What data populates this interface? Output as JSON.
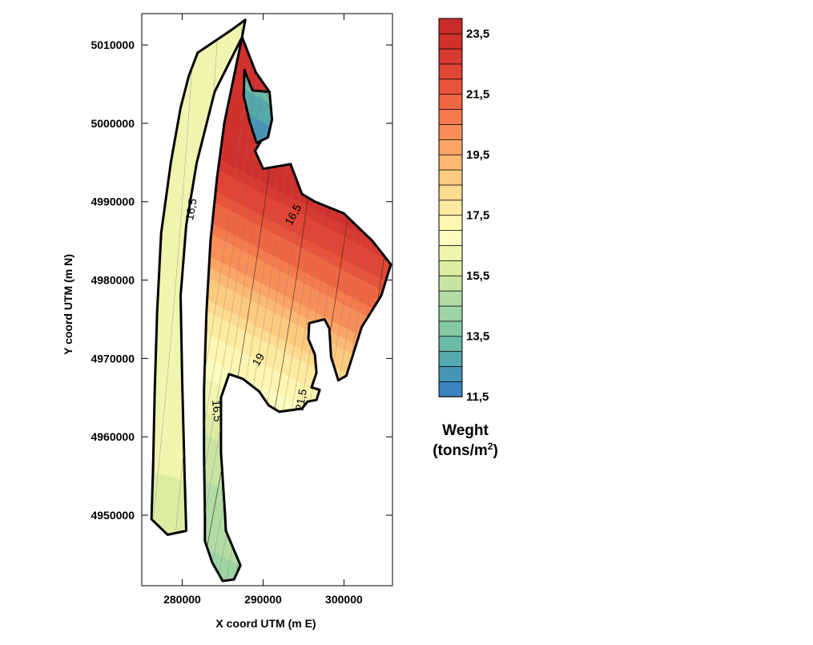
{
  "chart_data": {
    "type": "heatmap",
    "xlabel": "X coord UTM (m E)",
    "ylabel": "Y coord UTM (m N)",
    "xlim": [
      275000,
      306000
    ],
    "ylim": [
      4941000,
      5014000
    ],
    "x_ticks": [
      "280000",
      "290000",
      "300000"
    ],
    "x_tick_values": [
      280000,
      290000,
      300000
    ],
    "y_ticks": [
      "4950000",
      "4960000",
      "4970000",
      "4980000",
      "4990000",
      "5000000",
      "5010000"
    ],
    "y_tick_values": [
      4950000,
      4960000,
      4970000,
      4980000,
      4990000,
      5000000,
      5010000
    ],
    "grid": false,
    "colorbar": {
      "title_line1": "Weght",
      "title_line2": "(tons/m",
      "title_sup": "2",
      "title_end": ")",
      "min": 11.5,
      "max": 24,
      "step": 0.5,
      "tick_labels": [
        "23,5",
        "21,5",
        "19,5",
        "17,5",
        "15,5",
        "13,5",
        "11,5"
      ],
      "tick_values": [
        23.5,
        21.5,
        19.5,
        17.5,
        15.5,
        13.5,
        11.5
      ],
      "colors_low_to_high": [
        "#3B82C0",
        "#4596B6",
        "#54AAAC",
        "#6BBCA6",
        "#85C8A4",
        "#9ED3A4",
        "#B3DBA4",
        "#C8E4A3",
        "#DCEDA2",
        "#EEF5AE",
        "#FCFCBE",
        "#FEF6B2",
        "#FEEAA0",
        "#FDDC8F",
        "#FDCB80",
        "#FDB872",
        "#FCA565",
        "#F98F58",
        "#F57B4D",
        "#EF6643",
        "#E8543B",
        "#E04535",
        "#D83A31",
        "#D0312D",
        "#C92A2A"
      ]
    },
    "contour_labels": [
      {
        "text": "16,5",
        "x": 281200,
        "y": 4989000,
        "rotation": -80
      },
      {
        "text": "16,5",
        "x": 293800,
        "y": 4988300,
        "rotation": -62
      },
      {
        "text": "19",
        "x": 289500,
        "y": 4969800,
        "rotation": -58
      },
      {
        "text": "21,5",
        "x": 294800,
        "y": 4964700,
        "rotation": -80
      },
      {
        "text": "16,5",
        "x": 284200,
        "y": 4963300,
        "rotation": 85
      }
    ],
    "regions": [
      {
        "name": "western-strip",
        "boundary": [
          [
            281900,
            5009000
          ],
          [
            286200,
            5012000
          ],
          [
            287800,
            5013200
          ],
          [
            287400,
            5011000
          ],
          [
            284000,
            5004000
          ],
          [
            281800,
            4995000
          ],
          [
            280500,
            4987000
          ],
          [
            279800,
            4978000
          ],
          [
            280000,
            4967000
          ],
          [
            280300,
            4955000
          ],
          [
            280500,
            4948000
          ],
          [
            278200,
            4947500
          ],
          [
            276200,
            4949500
          ],
          [
            276400,
            4956000
          ],
          [
            276600,
            4966000
          ],
          [
            276900,
            4976000
          ],
          [
            277400,
            4986000
          ],
          [
            278600,
            4995000
          ],
          [
            279800,
            5002000
          ],
          [
            280800,
            5006000
          ]
        ],
        "stops": [
          [
            0,
            15.8
          ],
          [
            0.5,
            16.4
          ],
          [
            1,
            16.2
          ]
        ]
      },
      {
        "name": "central-lobe",
        "boundary": [
          [
            287400,
            5011000
          ],
          [
            289100,
            5006500
          ],
          [
            290800,
            5004000
          ],
          [
            290200,
            4998500
          ],
          [
            289000,
            4996500
          ],
          [
            290000,
            4994200
          ],
          [
            293400,
            4994800
          ],
          [
            294800,
            4991000
          ],
          [
            296400,
            4990000
          ],
          [
            300000,
            4988500
          ],
          [
            303500,
            4985000
          ],
          [
            305800,
            4982000
          ],
          [
            304600,
            4978000
          ],
          [
            302200,
            4974000
          ],
          [
            300300,
            4967800
          ],
          [
            299300,
            4967200
          ],
          [
            298400,
            4970200
          ],
          [
            298200,
            4973800
          ],
          [
            297600,
            4975000
          ],
          [
            295700,
            4974500
          ],
          [
            295600,
            4972500
          ],
          [
            296400,
            4970500
          ],
          [
            296600,
            4968200
          ],
          [
            296000,
            4966300
          ],
          [
            297000,
            4966000
          ],
          [
            296600,
            4964700
          ],
          [
            295500,
            4964500
          ],
          [
            294800,
            4963600
          ],
          [
            292000,
            4963200
          ],
          [
            290700,
            4964000
          ],
          [
            289500,
            4965800
          ],
          [
            287500,
            4967400
          ],
          [
            285800,
            4968000
          ],
          [
            284800,
            4965000
          ],
          [
            284800,
            4958000
          ],
          [
            285300,
            4950000
          ],
          [
            285400,
            4948000
          ],
          [
            287200,
            4943600
          ],
          [
            286400,
            4941800
          ],
          [
            285000,
            4941600
          ],
          [
            283700,
            4944000
          ],
          [
            282800,
            4946700
          ],
          [
            282800,
            4950000
          ],
          [
            282700,
            4958000
          ],
          [
            282700,
            4966000
          ],
          [
            283000,
            4976000
          ],
          [
            283500,
            4985000
          ],
          [
            284300,
            4993000
          ],
          [
            285200,
            5000000
          ],
          [
            286200,
            5005000
          ]
        ],
        "stops": [
          [
            0,
            14.2
          ],
          [
            0.3,
            15.3
          ],
          [
            0.55,
            17.4
          ],
          [
            0.75,
            20.2
          ],
          [
            1,
            23.6
          ]
        ]
      },
      {
        "name": "north-tip",
        "boundary": [
          [
            287700,
            5006800
          ],
          [
            288700,
            5004200
          ],
          [
            290800,
            5004000
          ],
          [
            291100,
            5000500
          ],
          [
            290600,
            4998200
          ],
          [
            289200,
            4997500
          ],
          [
            288400,
            5000000
          ],
          [
            287600,
            5003500
          ]
        ],
        "stops": [
          [
            0,
            11.8
          ],
          [
            1,
            13.2
          ]
        ]
      }
    ]
  }
}
